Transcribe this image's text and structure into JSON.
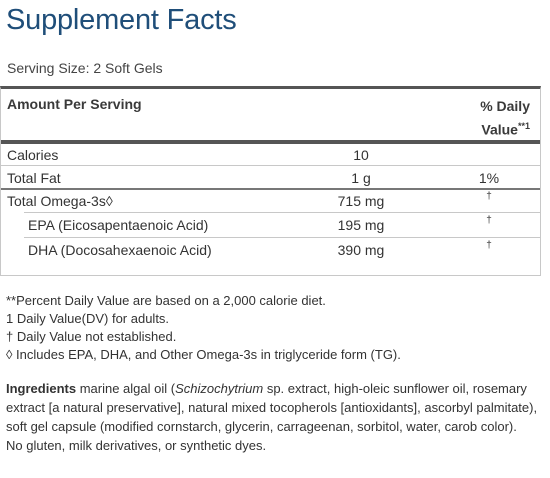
{
  "title": "Supplement Facts",
  "serving_size": "Serving Size: 2 Soft Gels",
  "header": {
    "left": "Amount Per Serving",
    "right_line1": "% Daily",
    "right_line2": "Value",
    "right_sup": "**1"
  },
  "rows": [
    {
      "name": "Calories",
      "amount": "10",
      "dv": ""
    },
    {
      "name": "Total Fat",
      "amount": "1 g",
      "dv": "1%"
    },
    {
      "name": "Total Omega-3s◊",
      "amount": "715 mg",
      "dv": "†"
    },
    {
      "name": "EPA (Eicosapentaenoic Acid)",
      "amount": "195 mg",
      "dv": "†"
    },
    {
      "name": "DHA (Docosahexaenoic Acid)",
      "amount": "390 mg",
      "dv": "†"
    }
  ],
  "notes": [
    "**Percent Daily Value are based on a 2,000 calorie diet.",
    "1 Daily Value(DV) for adults.",
    "†  Daily Value not established.",
    "◊  Includes EPA, DHA, and Other Omega-3s in triglyceride form (TG)."
  ],
  "ingredients": {
    "label": "Ingredients",
    "text_before": " marine algal oil (",
    "italic": "Schizochytrium",
    "text_after": " sp. extract, high-oleic sunflower oil, rosemary extract [a natural preservative], natural mixed tocopherols [antioxidants], ascorbyl palmitate), soft gel capsule (modified cornstarch, glycerin, carrageenan, sorbitol, water, carob color).",
    "free_from": "No gluten, milk derivatives, or synthetic dyes."
  }
}
